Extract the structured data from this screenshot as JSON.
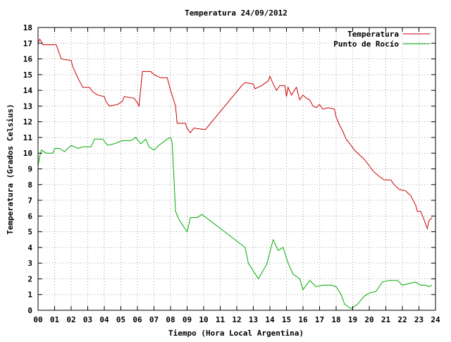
{
  "chart_data": {
    "type": "line",
    "title": "Temperatura 24/09/2012",
    "xlabel": "Tiempo (Hora Local Argentina)",
    "ylabel": "Temperatura (Grados Celsius)",
    "xlim": [
      0,
      24
    ],
    "ylim": [
      0,
      18
    ],
    "x_ticks": [
      "00",
      "01",
      "02",
      "03",
      "04",
      "05",
      "06",
      "07",
      "08",
      "09",
      "10",
      "11",
      "12",
      "13",
      "14",
      "15",
      "16",
      "17",
      "18",
      "19",
      "20",
      "21",
      "22",
      "23",
      "24"
    ],
    "y_ticks": [
      "0",
      "1",
      "2",
      "3",
      "4",
      "5",
      "6",
      "7",
      "8",
      "9",
      "10",
      "11",
      "12",
      "13",
      "14",
      "15",
      "16",
      "17",
      "18"
    ],
    "grid": true,
    "legend_position": "top-right",
    "series": [
      {
        "name": "Temperatura",
        "color": "#cc0000",
        "points": [
          [
            0.0,
            17.0
          ],
          [
            0.1,
            17.25
          ],
          [
            0.2,
            17.1
          ],
          [
            0.3,
            16.9
          ],
          [
            1.1,
            16.9
          ],
          [
            1.2,
            16.6
          ],
          [
            1.4,
            16.0
          ],
          [
            2.0,
            15.9
          ],
          [
            2.1,
            15.5
          ],
          [
            2.4,
            14.8
          ],
          [
            2.7,
            14.2
          ],
          [
            3.1,
            14.2
          ],
          [
            3.3,
            13.9
          ],
          [
            3.6,
            13.7
          ],
          [
            4.0,
            13.6
          ],
          [
            4.1,
            13.3
          ],
          [
            4.3,
            13.0
          ],
          [
            4.8,
            13.1
          ],
          [
            5.1,
            13.3
          ],
          [
            5.2,
            13.6
          ],
          [
            5.8,
            13.5
          ],
          [
            6.0,
            13.2
          ],
          [
            6.1,
            13.0
          ],
          [
            6.3,
            15.2
          ],
          [
            6.8,
            15.2
          ],
          [
            7.0,
            15.0
          ],
          [
            7.4,
            14.8
          ],
          [
            7.8,
            14.8
          ],
          [
            8.0,
            14.0
          ],
          [
            8.3,
            13.0
          ],
          [
            8.4,
            11.9
          ],
          [
            8.9,
            11.9
          ],
          [
            9.0,
            11.6
          ],
          [
            9.2,
            11.3
          ],
          [
            9.4,
            11.6
          ],
          [
            10.1,
            11.5
          ],
          [
            12.3,
            14.3
          ],
          [
            12.5,
            14.5
          ],
          [
            13.0,
            14.4
          ],
          [
            13.1,
            14.1
          ],
          [
            13.5,
            14.3
          ],
          [
            13.9,
            14.6
          ],
          [
            14.0,
            14.9
          ],
          [
            14.2,
            14.4
          ],
          [
            14.4,
            14.0
          ],
          [
            14.6,
            14.3
          ],
          [
            14.9,
            14.3
          ],
          [
            15.0,
            13.6
          ],
          [
            15.1,
            14.2
          ],
          [
            15.3,
            13.7
          ],
          [
            15.6,
            14.2
          ],
          [
            15.8,
            13.4
          ],
          [
            16.0,
            13.7
          ],
          [
            16.2,
            13.5
          ],
          [
            16.4,
            13.4
          ],
          [
            16.6,
            13.0
          ],
          [
            16.8,
            12.9
          ],
          [
            17.0,
            13.1
          ],
          [
            17.2,
            12.8
          ],
          [
            17.5,
            12.9
          ],
          [
            17.9,
            12.8
          ],
          [
            18.0,
            12.3
          ],
          [
            18.2,
            11.8
          ],
          [
            18.4,
            11.4
          ],
          [
            18.6,
            10.9
          ],
          [
            18.9,
            10.5
          ],
          [
            19.1,
            10.2
          ],
          [
            19.4,
            9.9
          ],
          [
            19.7,
            9.6
          ],
          [
            20.0,
            9.2
          ],
          [
            20.2,
            8.9
          ],
          [
            20.5,
            8.6
          ],
          [
            20.9,
            8.3
          ],
          [
            21.3,
            8.3
          ],
          [
            21.5,
            8.0
          ],
          [
            21.8,
            7.7
          ],
          [
            22.2,
            7.6
          ],
          [
            22.5,
            7.3
          ],
          [
            22.8,
            6.7
          ],
          [
            22.9,
            6.3
          ],
          [
            23.1,
            6.3
          ],
          [
            23.3,
            5.8
          ],
          [
            23.5,
            5.2
          ],
          [
            23.6,
            5.7
          ],
          [
            23.8,
            5.9
          ]
        ]
      },
      {
        "name": "Punto de Rocío",
        "color": "#00aa00",
        "points": [
          [
            0.0,
            9.2
          ],
          [
            0.1,
            9.8
          ],
          [
            0.2,
            10.2
          ],
          [
            0.5,
            10.0
          ],
          [
            0.9,
            10.0
          ],
          [
            1.0,
            10.3
          ],
          [
            1.3,
            10.3
          ],
          [
            1.6,
            10.1
          ],
          [
            2.0,
            10.5
          ],
          [
            2.4,
            10.3
          ],
          [
            2.7,
            10.4
          ],
          [
            3.2,
            10.4
          ],
          [
            3.4,
            10.9
          ],
          [
            3.9,
            10.9
          ],
          [
            4.2,
            10.5
          ],
          [
            4.6,
            10.6
          ],
          [
            5.1,
            10.8
          ],
          [
            5.6,
            10.8
          ],
          [
            5.9,
            11.0
          ],
          [
            6.2,
            10.6
          ],
          [
            6.5,
            10.9
          ],
          [
            6.7,
            10.4
          ],
          [
            7.0,
            10.2
          ],
          [
            7.3,
            10.5
          ],
          [
            7.8,
            10.9
          ],
          [
            8.0,
            11.0
          ],
          [
            8.1,
            10.7
          ],
          [
            8.3,
            6.3
          ],
          [
            8.5,
            5.8
          ],
          [
            8.8,
            5.3
          ],
          [
            9.0,
            5.0
          ],
          [
            9.2,
            5.9
          ],
          [
            9.6,
            5.9
          ],
          [
            9.9,
            6.1
          ],
          [
            12.5,
            4.0
          ],
          [
            12.7,
            3.0
          ],
          [
            13.3,
            2.0
          ],
          [
            13.8,
            2.9
          ],
          [
            14.2,
            4.5
          ],
          [
            14.5,
            3.8
          ],
          [
            14.8,
            4.0
          ],
          [
            15.1,
            3.0
          ],
          [
            15.4,
            2.3
          ],
          [
            15.8,
            2.0
          ],
          [
            16.0,
            1.3
          ],
          [
            16.4,
            1.9
          ],
          [
            16.8,
            1.5
          ],
          [
            17.2,
            1.6
          ],
          [
            17.7,
            1.6
          ],
          [
            18.0,
            1.5
          ],
          [
            18.3,
            1.0
          ],
          [
            18.5,
            0.4
          ],
          [
            18.9,
            0.1
          ],
          [
            19.3,
            0.4
          ],
          [
            19.7,
            0.9
          ],
          [
            20.0,
            1.1
          ],
          [
            20.4,
            1.2
          ],
          [
            20.8,
            1.8
          ],
          [
            21.2,
            1.9
          ],
          [
            21.7,
            1.9
          ],
          [
            22.0,
            1.6
          ],
          [
            22.4,
            1.7
          ],
          [
            22.8,
            1.8
          ],
          [
            23.1,
            1.6
          ],
          [
            23.4,
            1.6
          ],
          [
            23.6,
            1.5
          ],
          [
            23.8,
            1.6
          ]
        ]
      }
    ]
  }
}
